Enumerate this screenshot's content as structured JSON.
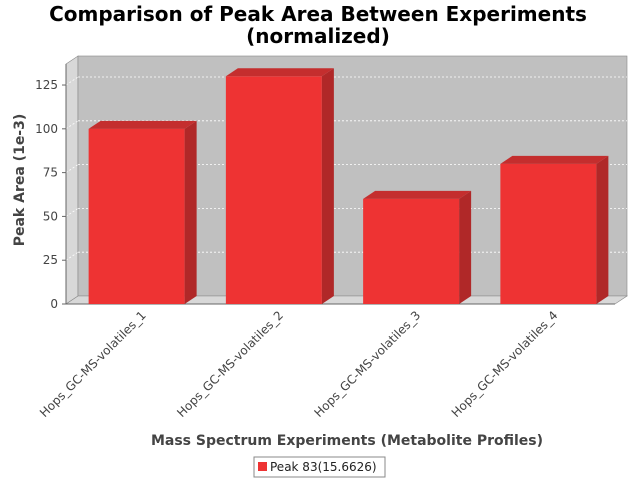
{
  "chart_data": {
    "type": "bar",
    "title": "Comparison of Peak Area Between Experiments",
    "subtitle": "(normalized)",
    "xlabel": "Mass Spectrum Experiments (Metabolite Profiles)",
    "ylabel": "Peak Area (1e-3)",
    "categories": [
      "Hops_GC-MS-volatiles_1",
      "Hops_GC-MS-volatiles_2",
      "Hops_GC-MS-volatiles_3",
      "Hops_GC-MS-volatiles_4"
    ],
    "series": [
      {
        "name": "Peak 83(15.6626)",
        "values": [
          100,
          130,
          60,
          80
        ],
        "color": "#ee3333"
      }
    ],
    "ylim": [
      0,
      137
    ],
    "yticks": [
      0,
      25,
      50,
      75,
      100,
      125
    ],
    "grid": true,
    "legend_position": "bottom",
    "style": "3d-bar",
    "colors": {
      "plot_background": "#c0c0c0",
      "wall": "#d8d8d8",
      "bar_front": "#ee3333",
      "bar_side": "#b02828",
      "bar_top": "#c42e2e"
    }
  }
}
